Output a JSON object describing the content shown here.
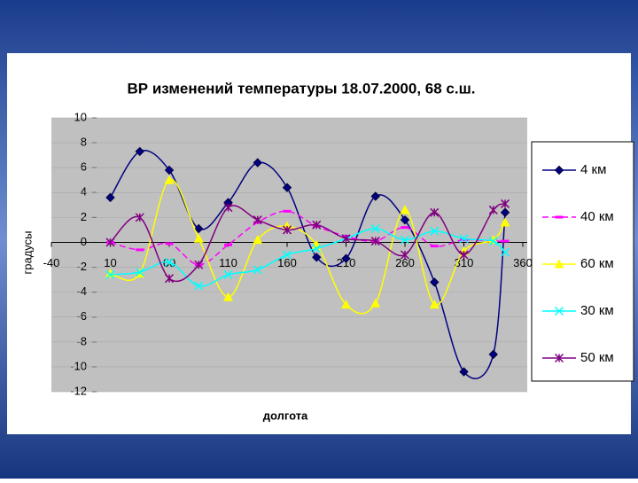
{
  "chart_data": {
    "type": "line",
    "title": "ВР изменений температуры 18.07.2000, 68 с.ш.",
    "x_label": "долгота",
    "y_label": "градусы",
    "x": [
      10,
      35,
      60,
      85,
      110,
      135,
      160,
      185,
      210,
      235,
      260,
      285,
      310,
      335,
      345
    ],
    "series": [
      {
        "name": "4 км",
        "color": "#000080",
        "marker": "diamond",
        "dashed": false,
        "values": [
          3.6,
          7.3,
          5.8,
          1.1,
          3.2,
          6.4,
          4.4,
          -1.2,
          -1.3,
          3.7,
          1.8,
          -3.2,
          -10.4,
          -9,
          2.4
        ]
      },
      {
        "name": "40 км",
        "color": "#ff00ff",
        "marker": "dash",
        "dashed": true,
        "values": [
          0,
          -0.6,
          -0.1,
          -1.8,
          -0.2,
          1.6,
          2.5,
          1.3,
          0.5,
          0.1,
          1.2,
          -0.3,
          0.2,
          0.1,
          0.1
        ]
      },
      {
        "name": "60 км",
        "color": "#ffff00",
        "marker": "triangle",
        "dashed": false,
        "values": [
          -2.5,
          -2.5,
          5,
          0.3,
          -4.4,
          0.2,
          1.3,
          -0.2,
          -5,
          -4.9,
          2.6,
          -5,
          -0.7,
          0.2,
          1.6
        ]
      },
      {
        "name": "30 км",
        "color": "#00ffff",
        "marker": "x",
        "dashed": false,
        "values": [
          -2.6,
          -2.4,
          -1.6,
          -3.5,
          -2.6,
          -2.2,
          -1,
          -0.5,
          0.3,
          1.1,
          0.2,
          0.9,
          0.3,
          0.1,
          -0.8
        ]
      },
      {
        "name": "50 км",
        "color": "#800080",
        "marker": "star",
        "dashed": false,
        "values": [
          0,
          2,
          -2.9,
          -1.8,
          2.8,
          1.8,
          1,
          1.4,
          0.3,
          0.1,
          -1,
          2.4,
          -1,
          2.6,
          3.1
        ]
      }
    ],
    "xlim": [
      -40,
      360
    ],
    "xticks": [
      -40,
      10,
      60,
      110,
      160,
      210,
      260,
      310,
      360
    ],
    "ylim": [
      -12,
      10
    ],
    "yticks": [
      -12,
      -10,
      -8,
      -6,
      -4,
      -2,
      0,
      2,
      4,
      6,
      8,
      10
    ],
    "grid": true,
    "legend": "right"
  }
}
